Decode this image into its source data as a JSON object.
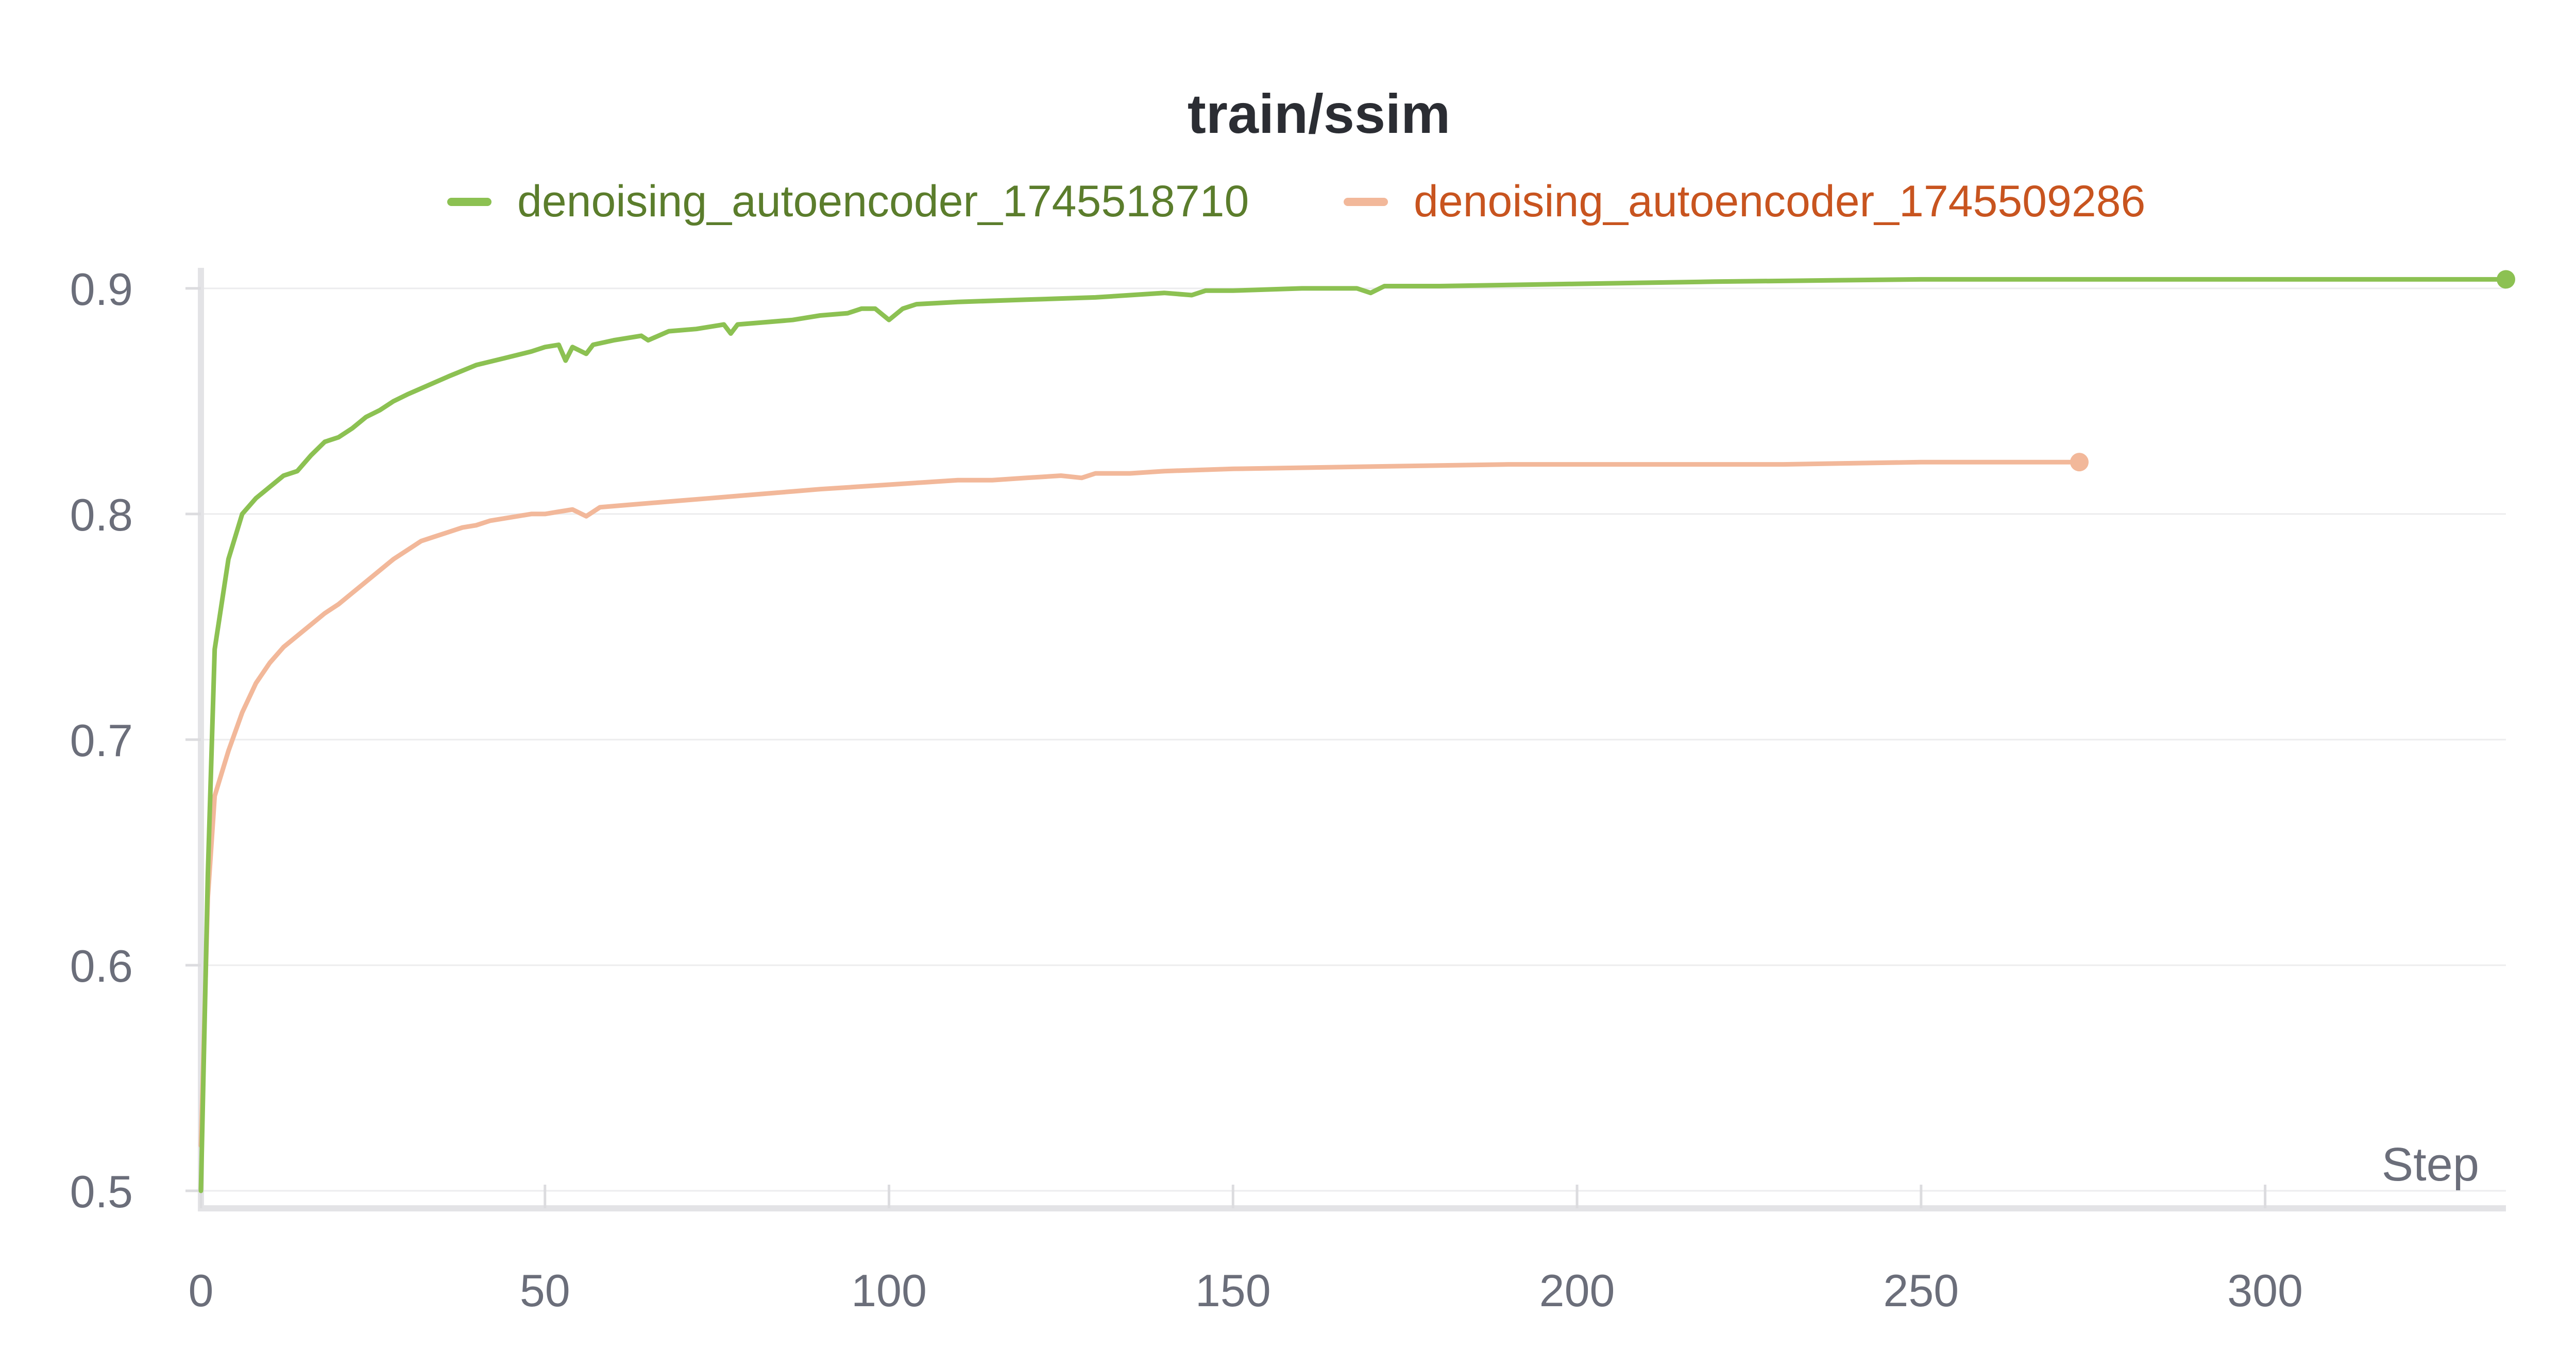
{
  "chart_data": {
    "type": "line",
    "title": "train/ssim",
    "xlabel": "Step",
    "ylabel": "",
    "xlim": [
      0,
      335
    ],
    "ylim": [
      0.5,
      0.905
    ],
    "x_ticks": [
      "0",
      "50",
      "100",
      "150",
      "200",
      "250",
      "300"
    ],
    "y_ticks": [
      "0.5",
      "0.6",
      "0.7",
      "0.8",
      "0.9"
    ],
    "grid": true,
    "legend_position": "top-center",
    "series": [
      {
        "name": "denoising_autoencoder_1745518710",
        "color": "#8cc152",
        "label_color": "#5b7d2c",
        "end_marker": true,
        "points": [
          [
            0,
            0.5
          ],
          [
            1,
            0.64
          ],
          [
            2,
            0.74
          ],
          [
            4,
            0.78
          ],
          [
            6,
            0.8
          ],
          [
            8,
            0.807
          ],
          [
            10,
            0.812
          ],
          [
            12,
            0.817
          ],
          [
            14,
            0.819
          ],
          [
            16,
            0.826
          ],
          [
            18,
            0.832
          ],
          [
            20,
            0.834
          ],
          [
            22,
            0.838
          ],
          [
            24,
            0.843
          ],
          [
            26,
            0.846
          ],
          [
            28,
            0.85
          ],
          [
            30,
            0.853
          ],
          [
            33,
            0.857
          ],
          [
            36,
            0.861
          ],
          [
            40,
            0.866
          ],
          [
            44,
            0.869
          ],
          [
            48,
            0.872
          ],
          [
            50,
            0.874
          ],
          [
            52,
            0.875
          ],
          [
            53,
            0.868
          ],
          [
            54,
            0.874
          ],
          [
            56,
            0.871
          ],
          [
            57,
            0.875
          ],
          [
            60,
            0.877
          ],
          [
            64,
            0.879
          ],
          [
            65,
            0.877
          ],
          [
            68,
            0.881
          ],
          [
            72,
            0.882
          ],
          [
            76,
            0.884
          ],
          [
            77,
            0.88
          ],
          [
            78,
            0.884
          ],
          [
            82,
            0.885
          ],
          [
            86,
            0.886
          ],
          [
            90,
            0.888
          ],
          [
            94,
            0.889
          ],
          [
            96,
            0.891
          ],
          [
            98,
            0.891
          ],
          [
            100,
            0.886
          ],
          [
            102,
            0.891
          ],
          [
            104,
            0.893
          ],
          [
            110,
            0.894
          ],
          [
            120,
            0.895
          ],
          [
            130,
            0.896
          ],
          [
            140,
            0.898
          ],
          [
            144,
            0.897
          ],
          [
            146,
            0.899
          ],
          [
            150,
            0.899
          ],
          [
            160,
            0.9
          ],
          [
            168,
            0.9
          ],
          [
            170,
            0.898
          ],
          [
            172,
            0.901
          ],
          [
            180,
            0.901
          ],
          [
            200,
            0.902
          ],
          [
            220,
            0.903
          ],
          [
            250,
            0.904
          ],
          [
            280,
            0.904
          ],
          [
            300,
            0.904
          ],
          [
            320,
            0.904
          ],
          [
            335,
            0.904
          ]
        ]
      },
      {
        "name": "denoising_autoencoder_1745509286",
        "color": "#f2b89a",
        "label_color": "#c8541f",
        "end_marker": true,
        "points": [
          [
            0,
            0.52
          ],
          [
            1,
            0.63
          ],
          [
            2,
            0.675
          ],
          [
            4,
            0.695
          ],
          [
            6,
            0.712
          ],
          [
            8,
            0.725
          ],
          [
            10,
            0.734
          ],
          [
            12,
            0.741
          ],
          [
            14,
            0.746
          ],
          [
            16,
            0.751
          ],
          [
            18,
            0.756
          ],
          [
            20,
            0.76
          ],
          [
            22,
            0.765
          ],
          [
            24,
            0.77
          ],
          [
            26,
            0.775
          ],
          [
            28,
            0.78
          ],
          [
            30,
            0.784
          ],
          [
            32,
            0.788
          ],
          [
            34,
            0.79
          ],
          [
            36,
            0.792
          ],
          [
            38,
            0.794
          ],
          [
            40,
            0.795
          ],
          [
            42,
            0.797
          ],
          [
            44,
            0.798
          ],
          [
            46,
            0.799
          ],
          [
            48,
            0.8
          ],
          [
            50,
            0.8
          ],
          [
            52,
            0.801
          ],
          [
            54,
            0.802
          ],
          [
            56,
            0.799
          ],
          [
            58,
            0.803
          ],
          [
            62,
            0.804
          ],
          [
            66,
            0.805
          ],
          [
            70,
            0.806
          ],
          [
            74,
            0.807
          ],
          [
            78,
            0.808
          ],
          [
            82,
            0.809
          ],
          [
            86,
            0.81
          ],
          [
            90,
            0.811
          ],
          [
            95,
            0.812
          ],
          [
            100,
            0.813
          ],
          [
            105,
            0.814
          ],
          [
            110,
            0.815
          ],
          [
            115,
            0.815
          ],
          [
            120,
            0.816
          ],
          [
            125,
            0.817
          ],
          [
            128,
            0.816
          ],
          [
            130,
            0.818
          ],
          [
            135,
            0.818
          ],
          [
            140,
            0.819
          ],
          [
            150,
            0.82
          ],
          [
            170,
            0.821
          ],
          [
            190,
            0.822
          ],
          [
            210,
            0.822
          ],
          [
            230,
            0.822
          ],
          [
            250,
            0.823
          ],
          [
            273,
            0.823
          ]
        ]
      }
    ]
  }
}
